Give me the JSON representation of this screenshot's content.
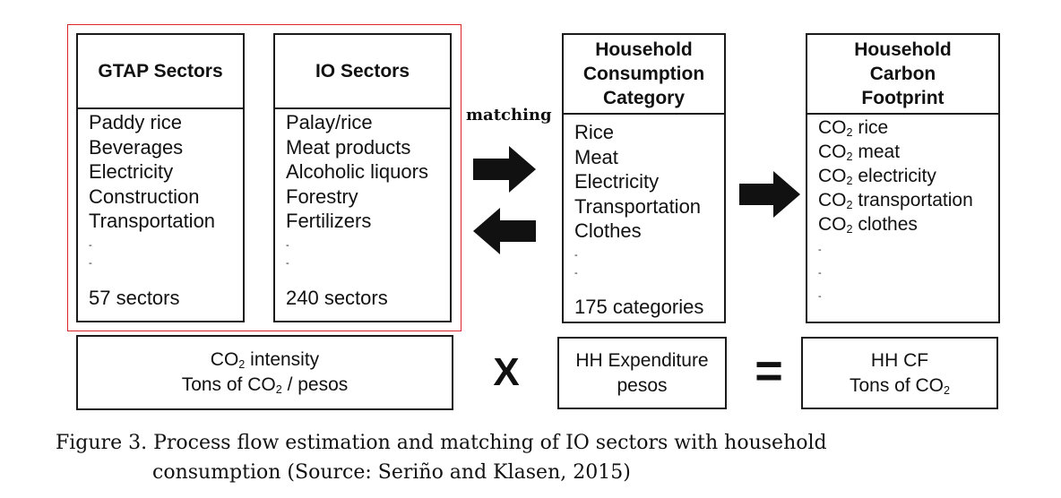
{
  "gtap": {
    "title": "GTAP Sectors",
    "items": [
      "Paddy rice",
      "Beverages",
      "Electricity",
      "Construction",
      "Transportation"
    ],
    "ellipsis": [
      "-",
      "-"
    ],
    "footer": "57 sectors"
  },
  "io": {
    "title": "IO Sectors",
    "items": [
      "Palay/rice",
      "Meat products",
      "Alcoholic liquors",
      "Forestry",
      "Fertilizers"
    ],
    "ellipsis": [
      "-",
      "-"
    ],
    "footer": "240 sectors"
  },
  "matching_label": "matching",
  "consumption": {
    "title": [
      "Household",
      "Consumption",
      "Category"
    ],
    "items": [
      "Rice",
      "Meat",
      "Electricity",
      "Transportation",
      "Clothes"
    ],
    "ellipsis": [
      "-",
      "-"
    ],
    "footer": "175 categories"
  },
  "footprint": {
    "title": [
      "Household",
      "Carbon",
      "Footprint"
    ],
    "co2_prefix": "CO",
    "co2_sub": "2",
    "items": [
      "rice",
      "meat",
      "electricity",
      "transportation",
      "clothes"
    ],
    "ellipsis": [
      "-",
      "-",
      "-"
    ]
  },
  "intensity": {
    "line1_sub": "2",
    "line1_prefix": "CO",
    "line1_rest": " intensity",
    "line2_before": "Tons of  CO",
    "line2_sub": "2",
    "line2_after": " / pesos"
  },
  "multiply_symbol": "X",
  "expenditure": {
    "line1": "HH Expenditure",
    "line2": "pesos"
  },
  "equals_symbol": "=",
  "hh_cf": {
    "line1": "HH CF",
    "line2_before": "Tons of  CO",
    "line2_sub": "2"
  },
  "caption": {
    "line1": "Figure 3. Process flow estimation and matching of IO sectors with household",
    "line2": "consumption (Source: Seriño and Klasen, 2015)"
  }
}
